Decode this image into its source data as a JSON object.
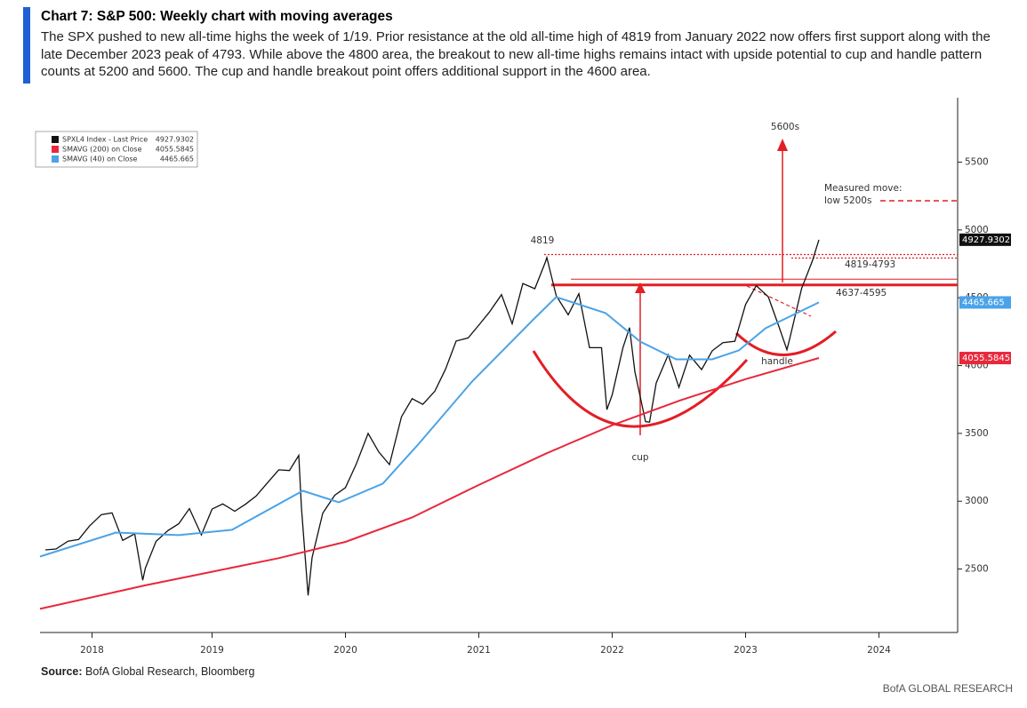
{
  "header": {
    "title": "Chart 7: S&P 500: Weekly chart with moving averages",
    "subtitle": "The SPX pushed to new all-time highs the week of 1/19. Prior resistance at the old all-time high of 4819 from January 2022 now offers first support along with the late December 2023 peak of 4793. While above the 4800 area, the breakout to new all-time highs remains intact with upside potential to cup and handle pattern counts at 5200 and 5600. The cup and handle breakout point offers additional support in the 4600 area."
  },
  "chart_data": {
    "type": "line",
    "xlim": [
      2018.21,
      2025.09
    ],
    "ylim": [
      2032,
      5975
    ],
    "yticks": [
      2500,
      3000,
      3500,
      4000,
      4500,
      5000,
      5500
    ],
    "xticks": [
      {
        "value": 2018.6,
        "label": "2018"
      },
      {
        "value": 2019.5,
        "label": "2019"
      },
      {
        "value": 2020.5,
        "label": "2020"
      },
      {
        "value": 2021.5,
        "label": "2021"
      },
      {
        "value": 2022.5,
        "label": "2022"
      },
      {
        "value": 2023.5,
        "label": "2023"
      },
      {
        "value": 2024.5,
        "label": "2024"
      }
    ],
    "legend": "top-left",
    "series": [
      {
        "name": "SPXL4 Index - Last Price",
        "color": "#111111",
        "last": 4927.9302,
        "x": [
          2018.25,
          2018.33,
          2018.42,
          2018.5,
          2018.58,
          2018.67,
          2018.75,
          2018.83,
          2018.92,
          2018.98,
          2019.0,
          2019.08,
          2019.17,
          2019.25,
          2019.33,
          2019.42,
          2019.5,
          2019.58,
          2019.67,
          2019.75,
          2019.83,
          2019.92,
          2020.0,
          2020.08,
          2020.15,
          2020.17,
          2020.22,
          2020.25,
          2020.33,
          2020.42,
          2020.5,
          2020.58,
          2020.67,
          2020.75,
          2020.83,
          2020.92,
          2021.0,
          2021.08,
          2021.17,
          2021.25,
          2021.33,
          2021.42,
          2021.5,
          2021.58,
          2021.67,
          2021.75,
          2021.83,
          2021.92,
          2022.0,
          2022.01,
          2022.08,
          2022.17,
          2022.25,
          2022.33,
          2022.42,
          2022.46,
          2022.5,
          2022.58,
          2022.63,
          2022.67,
          2022.75,
          2022.78,
          2022.83,
          2022.92,
          2023.0,
          2023.08,
          2023.17,
          2023.25,
          2023.33,
          2023.42,
          2023.5,
          2023.58,
          2023.67,
          2023.75,
          2023.81,
          2023.83,
          2023.92,
          2024.0,
          2024.05
        ],
        "values": [
          2641,
          2648,
          2705,
          2718,
          2816,
          2901,
          2914,
          2711,
          2760,
          2417,
          2507,
          2704,
          2784,
          2834,
          2946,
          2752,
          2942,
          2980,
          2926,
          2977,
          3038,
          3141,
          3231,
          3226,
          3338,
          2954,
          2305,
          2585,
          2912,
          3044,
          3100,
          3271,
          3500,
          3363,
          3270,
          3622,
          3756,
          3714,
          3811,
          3973,
          4181,
          4204,
          4298,
          4395,
          4523,
          4308,
          4605,
          4567,
          4766,
          4797,
          4516,
          4374,
          4530,
          4132,
          4132,
          3675,
          3785,
          4130,
          4280,
          3955,
          3586,
          3583,
          3872,
          4080,
          3840,
          4077,
          3970,
          4109,
          4169,
          4180,
          4450,
          4589,
          4508,
          4288,
          4117,
          4194,
          4568,
          4770,
          4927.93
        ]
      },
      {
        "name": "SMAVG (200)  on Close",
        "color": "#e8283c",
        "last": 4055.5845,
        "x": [
          2018.21,
          2019.0,
          2019.5,
          2020.0,
          2020.5,
          2021.0,
          2021.5,
          2022.0,
          2022.5,
          2023.0,
          2023.5,
          2024.05
        ],
        "values": [
          2206,
          2380,
          2480,
          2580,
          2700,
          2880,
          3120,
          3350,
          3560,
          3740,
          3900,
          4055.58
        ]
      },
      {
        "name": "SMAVG (40)  on Close",
        "color": "#4aa3e8",
        "last": 4465.665,
        "x": [
          2018.21,
          2018.78,
          2019.25,
          2019.65,
          2020.18,
          2020.45,
          2020.78,
          2021.05,
          2021.45,
          2021.91,
          2022.08,
          2022.45,
          2022.71,
          2022.98,
          2023.25,
          2023.45,
          2023.65,
          2024.05
        ],
        "values": [
          2592,
          2769,
          2750,
          2789,
          3077,
          2992,
          3130,
          3424,
          3883,
          4341,
          4505,
          4387,
          4177,
          4046,
          4046,
          4112,
          4275,
          4465.665
        ]
      }
    ],
    "annotations": {
      "peak": "4819",
      "upper_band": {
        "label": "4819-4793",
        "values": [
          4819,
          4793
        ]
      },
      "lower_band": {
        "label": "4637-4595",
        "values": [
          4637,
          4595
        ]
      },
      "target_high": "5600s",
      "measured_move": [
        "Measured move:",
        "low 5200s"
      ],
      "cup": "cup",
      "handle": "handle"
    }
  },
  "footer": {
    "source_label": "Source:",
    "source": "BofA Global Research, Bloomberg",
    "brand": "BofA GLOBAL RESEARCH"
  }
}
